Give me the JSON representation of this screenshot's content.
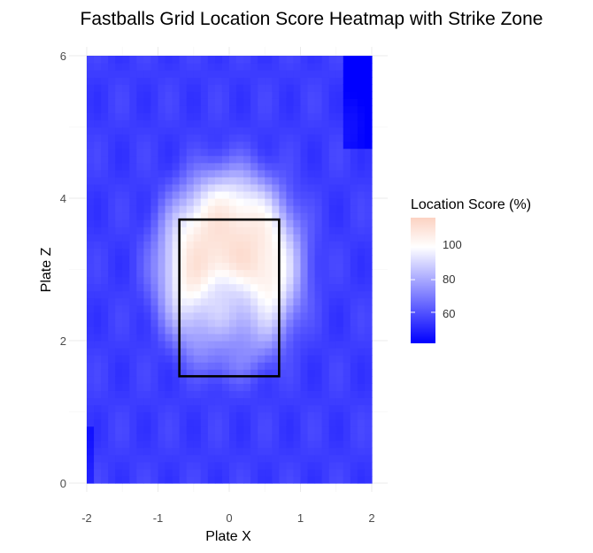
{
  "chart_data": {
    "type": "heatmap",
    "title": "Fastballs Grid Location Score Heatmap with Strike Zone",
    "xlabel": "Plate X",
    "ylabel": "Plate Z",
    "xlim": [
      -2,
      2
    ],
    "ylim": [
      0,
      6
    ],
    "x_ticks": [
      "-2",
      "-1",
      "0",
      "1",
      "2"
    ],
    "y_ticks": [
      "0",
      "2",
      "4",
      "6"
    ],
    "grid": true,
    "legend": {
      "title": "Location Score (%)",
      "position": "right",
      "range": [
        41,
        118
      ],
      "ticks": [
        "60",
        "80",
        "100"
      ],
      "colors": {
        "low": "#0000ff",
        "mid": "#ffffff",
        "high": "#fcd2c2",
        "midpoint": 100
      }
    },
    "strike_zone": {
      "x": [
        -0.7,
        0.7
      ],
      "z": [
        1.5,
        3.7
      ]
    },
    "cell_size": 0.1,
    "model": {
      "background": 55,
      "peak": 112,
      "center": [
        0,
        3.05
      ],
      "radii": [
        1.0,
        1.35
      ],
      "inner_dip": {
        "center": [
          0,
          2.35
        ],
        "radii": [
          0.52,
          0.62
        ],
        "depth": 22
      },
      "top_right_corner": {
        "x_from": 1.6,
        "z_from": 4.7,
        "value": 41
      }
    }
  }
}
